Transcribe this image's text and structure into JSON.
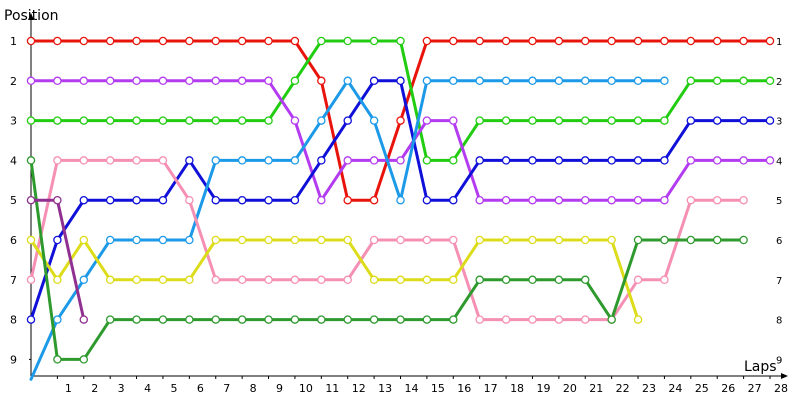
{
  "chart_data": {
    "type": "line",
    "title": "",
    "xlabel": "Laps",
    "ylabel": "Position",
    "x_ticks": [
      "1",
      "2",
      "3",
      "4",
      "5",
      "6",
      "7",
      "8",
      "9",
      "10",
      "11",
      "12",
      "13",
      "14",
      "15",
      "16",
      "17",
      "18",
      "19",
      "20",
      "21",
      "22",
      "23",
      "24",
      "25",
      "26",
      "27",
      "28"
    ],
    "y_ticks": [
      "1",
      "2",
      "3",
      "4",
      "5",
      "6",
      "7",
      "8",
      "9"
    ],
    "xlim": [
      0,
      28.5
    ],
    "ylim": [
      1,
      9.5
    ],
    "grid": false,
    "legend": "none",
    "series": [
      {
        "color": "#e8140c",
        "x": [
          0,
          1,
          2,
          3,
          4,
          5,
          6,
          7,
          8,
          9,
          10,
          11,
          12,
          13,
          14,
          15,
          16,
          17,
          18,
          19,
          20,
          21,
          22,
          23,
          24,
          25,
          26,
          27,
          28
        ],
        "y": [
          1,
          1,
          1,
          1,
          1,
          1,
          1,
          1,
          1,
          1,
          1,
          2,
          5,
          5,
          3,
          1,
          1,
          1,
          1,
          1,
          1,
          1,
          1,
          1,
          1,
          1,
          1,
          1,
          1
        ]
      },
      {
        "color": "#22cc11",
        "x": [
          0,
          1,
          2,
          3,
          4,
          5,
          6,
          7,
          8,
          9,
          10,
          11,
          12,
          13,
          14,
          15,
          16,
          17,
          18,
          19,
          20,
          21,
          22,
          23,
          24,
          25,
          26,
          27,
          28
        ],
        "y": [
          3,
          3,
          3,
          3,
          3,
          3,
          3,
          3,
          3,
          3,
          2,
          1,
          1,
          1,
          1,
          4,
          4,
          3,
          3,
          3,
          3,
          3,
          3,
          3,
          3,
          2,
          2,
          2,
          2
        ]
      },
      {
        "color": "#b43cf0",
        "x": [
          0,
          1,
          2,
          3,
          4,
          5,
          6,
          7,
          8,
          9,
          10,
          11,
          12,
          13,
          14,
          15,
          16,
          17,
          18,
          19,
          20,
          21,
          22,
          23,
          24,
          25,
          26,
          27,
          28
        ],
        "y": [
          2,
          2,
          2,
          2,
          2,
          2,
          2,
          2,
          2,
          2,
          3,
          5,
          4,
          4,
          4,
          3,
          3,
          5,
          5,
          5,
          5,
          5,
          5,
          5,
          5,
          4,
          4,
          4,
          4
        ]
      },
      {
        "color": "#1010d8",
        "x": [
          0,
          1,
          2,
          3,
          4,
          5,
          6,
          7,
          8,
          9,
          10,
          11,
          12,
          13,
          14,
          15,
          16,
          17,
          18,
          19,
          20,
          21,
          22,
          23,
          24,
          25,
          26,
          27,
          28
        ],
        "y": [
          8,
          6,
          5,
          5,
          5,
          5,
          4,
          5,
          5,
          5,
          5,
          4,
          3,
          2,
          2,
          5,
          5,
          4,
          4,
          4,
          4,
          4,
          4,
          4,
          4,
          3,
          3,
          3,
          3
        ]
      },
      {
        "color": "#1c9ae8",
        "x": [
          0,
          1,
          2,
          3,
          4,
          5,
          6,
          7,
          8,
          9,
          10,
          11,
          12,
          13,
          14,
          15,
          16,
          17,
          18,
          19,
          20,
          21,
          22,
          23,
          24
        ],
        "y": [
          9.5,
          8,
          7,
          6,
          6,
          6,
          6,
          4,
          4,
          4,
          4,
          3,
          2,
          3,
          5,
          2,
          2,
          2,
          2,
          2,
          2,
          2,
          2,
          2,
          2
        ]
      },
      {
        "color": "#f590b4",
        "x": [
          0,
          1,
          2,
          3,
          4,
          5,
          6,
          7,
          8,
          9,
          10,
          11,
          12,
          13,
          14,
          15,
          16,
          17,
          18,
          19,
          20,
          21,
          22,
          23,
          24,
          25,
          26,
          27
        ],
        "y": [
          7,
          4,
          4,
          4,
          4,
          4,
          5,
          7,
          7,
          7,
          7,
          7,
          7,
          6,
          6,
          6,
          6,
          8,
          8,
          8,
          8,
          8,
          8,
          7,
          7,
          5,
          5,
          5
        ]
      },
      {
        "color": "#dcdc1a",
        "x": [
          0,
          1,
          2,
          3,
          4,
          5,
          6,
          7,
          8,
          9,
          10,
          11,
          12,
          13,
          14,
          15,
          16,
          17,
          18,
          19,
          20,
          21,
          22,
          23
        ],
        "y": [
          6,
          7,
          6,
          7,
          7,
          7,
          7,
          6,
          6,
          6,
          6,
          6,
          6,
          7,
          7,
          7,
          7,
          6,
          6,
          6,
          6,
          6,
          6,
          8
        ]
      },
      {
        "color": "#2e9a2e",
        "x": [
          0,
          1,
          2,
          3,
          4,
          5,
          6,
          7,
          8,
          9,
          10,
          11,
          12,
          13,
          14,
          15,
          16,
          17,
          18,
          19,
          20,
          21,
          22,
          23,
          24,
          25,
          26,
          27
        ],
        "y": [
          4,
          9,
          9,
          8,
          8,
          8,
          8,
          8,
          8,
          8,
          8,
          8,
          8,
          8,
          8,
          8,
          8,
          7,
          7,
          7,
          7,
          7,
          8,
          6,
          6,
          6,
          6,
          6
        ]
      },
      {
        "color": "#903090",
        "x": [
          0,
          1,
          2
        ],
        "y": [
          5,
          5,
          8
        ]
      }
    ]
  }
}
